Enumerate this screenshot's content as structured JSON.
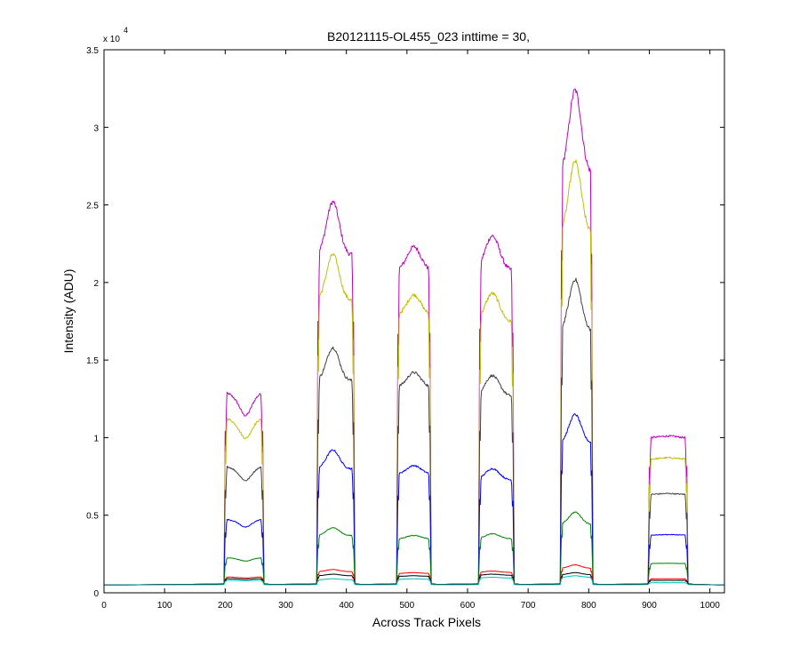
{
  "chart_data": {
    "type": "line",
    "title": "B20121115-OL455_023 inttime = 30,",
    "xlabel": "Across Track Pixels",
    "ylabel": "Intensity (ADU)",
    "y_exponent_label": "x 10",
    "y_exponent_power": "4",
    "xlim": [
      0,
      1024
    ],
    "ylim": [
      0,
      35000
    ],
    "x_ticks": [
      0,
      100,
      200,
      300,
      400,
      500,
      600,
      700,
      800,
      900,
      1000
    ],
    "x_tick_labels": [
      "0",
      "100",
      "200",
      "300",
      "400",
      "500",
      "600",
      "700",
      "800",
      "900",
      "1000"
    ],
    "y_ticks": [
      0,
      5000,
      10000,
      15000,
      20000,
      25000,
      30000,
      35000
    ],
    "y_tick_labels": [
      "0",
      "0.5",
      "1",
      "1.5",
      "2",
      "2.5",
      "3",
      "3.5"
    ],
    "grid": false,
    "legend": "none",
    "baseline": 500,
    "bands": [
      {
        "x_start": 200,
        "x_end": 262
      },
      {
        "x_start": 353,
        "x_end": 412
      },
      {
        "x_start": 485,
        "x_end": 538
      },
      {
        "x_start": 620,
        "x_end": 675
      },
      {
        "x_start": 755,
        "x_end": 805
      },
      {
        "x_start": 900,
        "x_end": 962
      }
    ],
    "series": [
      {
        "color": "#bf00bf",
        "peaks": [
          12500,
          25200,
          22300,
          23000,
          32400,
          10100
        ]
      },
      {
        "color": "#bfbf00",
        "peaks": [
          10900,
          21800,
          19200,
          19300,
          27800,
          8700
        ]
      },
      {
        "color": "#404040",
        "peaks": [
          7900,
          15800,
          14200,
          14000,
          20200,
          6400
        ]
      },
      {
        "color": "#0000ff",
        "peaks": [
          4600,
          9200,
          8200,
          8000,
          11500,
          3750
        ]
      },
      {
        "color": "#008000",
        "peaks": [
          2200,
          4200,
          3700,
          3800,
          5200,
          1900
        ]
      },
      {
        "color": "#ff0000",
        "peaks": [
          1000,
          1500,
          1300,
          1400,
          1800,
          900
        ]
      },
      {
        "color": "#000000",
        "peaks": [
          900,
          1200,
          1100,
          1200,
          1300,
          800
        ]
      },
      {
        "color": "#00bfbf",
        "peaks": [
          800,
          900,
          900,
          1000,
          1100,
          650
        ]
      }
    ]
  }
}
